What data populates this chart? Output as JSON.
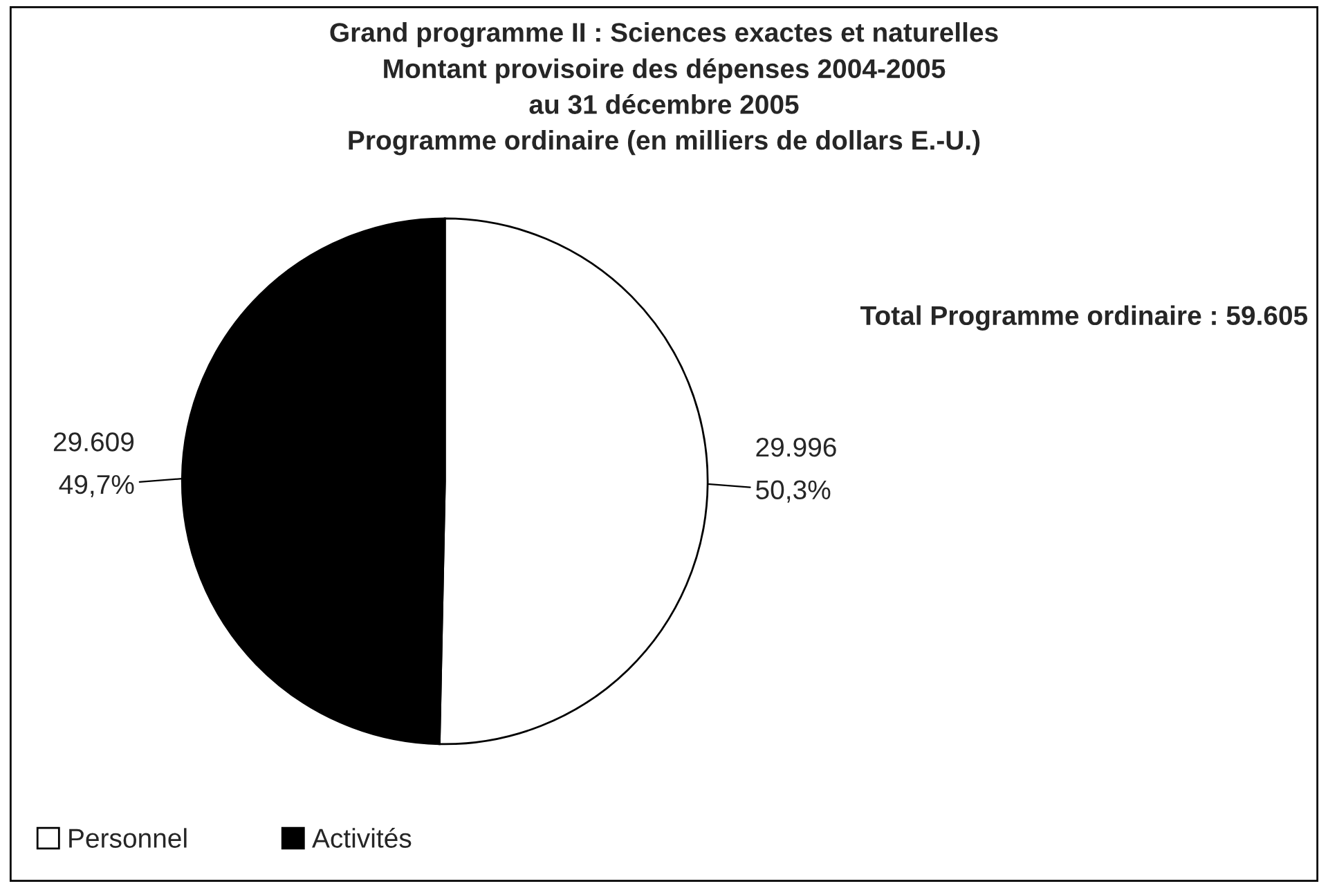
{
  "chart_data": {
    "type": "pie",
    "title": "Grand programme II : Sciences exactes et naturelles\nMontant provisoire des dépenses 2004-2005\nau 31 décembre 2005\nProgramme ordinaire (en milliers de dollars E.-U.)",
    "categories": [
      "Personnel",
      "Activités"
    ],
    "values": [
      29996,
      29609
    ],
    "colors": [
      "#ffffff",
      "#000000"
    ],
    "value_labels": [
      "29.996\n50,3%",
      "29.609\n49,7%"
    ],
    "annotations": [
      "Total Programme ordinaire : 59.605"
    ],
    "legend": "bottom left"
  }
}
